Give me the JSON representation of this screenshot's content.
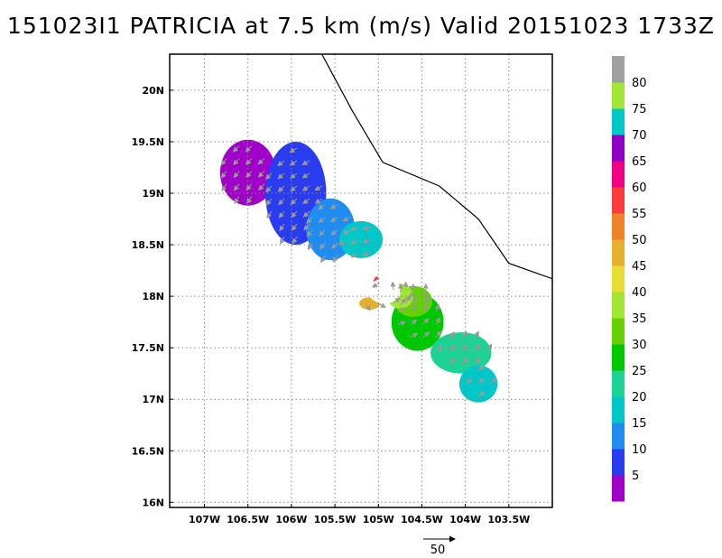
{
  "chart_data": {
    "type": "heatmap",
    "title": "151023I1 PATRICIA at 7.5 km (m/s) Valid 20151023 1733Z",
    "x_ticks": [
      "107W",
      "106.5W",
      "106W",
      "105.5W",
      "105W",
      "104.5W",
      "104W",
      "103.5W"
    ],
    "y_ticks": [
      "16N",
      "16.5N",
      "17N",
      "17.5N",
      "18N",
      "18.5N",
      "19N",
      "19.5N",
      "20N"
    ],
    "xlim": [
      -107.4,
      -103.0
    ],
    "ylim": [
      15.95,
      20.35
    ],
    "grid": true,
    "colorbar": {
      "labels": [
        "5",
        "10",
        "15",
        "20",
        "25",
        "30",
        "35",
        "40",
        "45",
        "50",
        "55",
        "60",
        "65",
        "70",
        "75",
        "80"
      ],
      "colors": [
        "#a000c8",
        "#2a3cf0",
        "#1e8cf0",
        "#00c8c8",
        "#1ed296",
        "#00c800",
        "#64d200",
        "#a0e632",
        "#e6dc32",
        "#e6af2d",
        "#f08228",
        "#fa3c3c",
        "#f00082",
        "#8c00c8",
        "#00c8c8",
        "#a0e632",
        "#a0a0a0"
      ]
    },
    "vector_reference": {
      "label": "50"
    },
    "coastline": [
      [
        -105.65,
        20.35
      ],
      [
        -105.3,
        19.8
      ],
      [
        -104.95,
        19.3
      ],
      [
        -104.3,
        19.07
      ],
      [
        -103.85,
        18.75
      ],
      [
        -103.5,
        18.32
      ],
      [
        -103.0,
        18.17
      ]
    ],
    "wind_regions": [
      {
        "label": "5",
        "center": [
          -106.5,
          19.2
        ],
        "radius": [
          0.32,
          0.32
        ]
      },
      {
        "label": "10",
        "center": [
          -105.95,
          19.0
        ],
        "radius": [
          0.35,
          0.5
        ]
      },
      {
        "label": "15",
        "center": [
          -105.55,
          18.65
        ],
        "radius": [
          0.28,
          0.3
        ]
      },
      {
        "label": "20",
        "center": [
          -105.2,
          18.55
        ],
        "radius": [
          0.25,
          0.18
        ]
      },
      {
        "label": "30",
        "center": [
          -104.55,
          17.75
        ],
        "radius": [
          0.3,
          0.28
        ]
      },
      {
        "label": "35",
        "center": [
          -104.6,
          17.95
        ],
        "radius": [
          0.22,
          0.15
        ]
      },
      {
        "label": "40",
        "center": [
          -104.75,
          18.0
        ],
        "radius": [
          0.15,
          0.12
        ]
      },
      {
        "label": "25",
        "center": [
          -104.05,
          17.45
        ],
        "radius": [
          0.35,
          0.2
        ]
      },
      {
        "label": "20",
        "center": [
          -103.85,
          17.15
        ],
        "radius": [
          0.22,
          0.18
        ]
      },
      {
        "label": "50",
        "center": [
          -105.1,
          17.93
        ],
        "radius": [
          0.12,
          0.06
        ]
      },
      {
        "label": "60",
        "center": [
          -105.02,
          18.12
        ],
        "radius": [
          0.04,
          0.07
        ]
      }
    ]
  }
}
